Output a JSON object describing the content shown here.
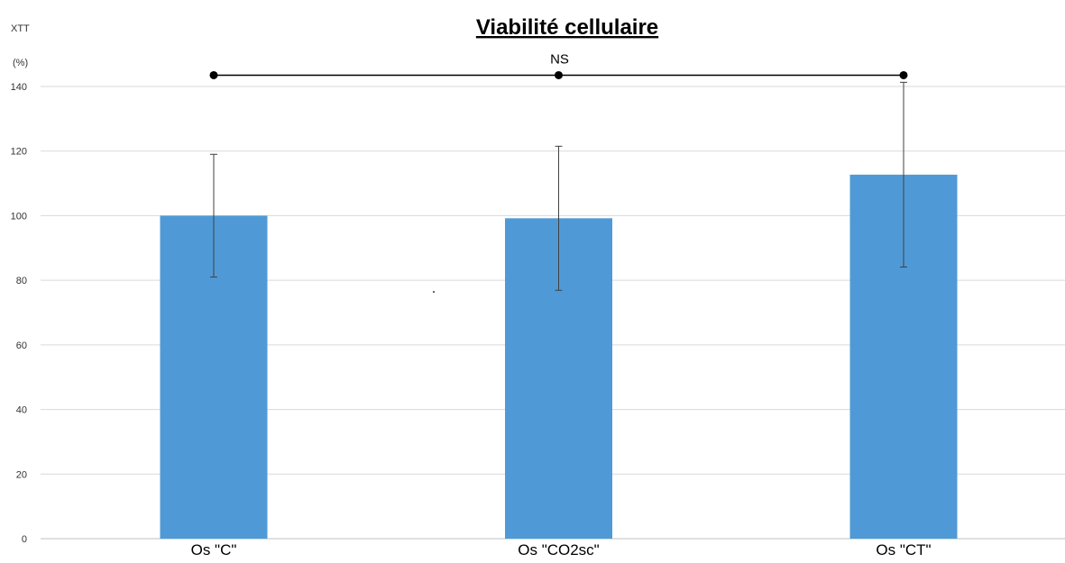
{
  "chart_data": {
    "type": "bar",
    "title": "Viabilité cellulaire",
    "ylabel_line1": "XTT",
    "ylabel_line2": "(%)",
    "xlabel": "",
    "categories": [
      "Os \"C\"",
      "Os \"CO2sc\"",
      "Os \"CT\""
    ],
    "values": [
      100,
      99.2,
      112.7
    ],
    "error": [
      19,
      22.3,
      28.6
    ],
    "ylim": [
      0,
      140
    ],
    "yticks": [
      0,
      20,
      40,
      60,
      80,
      100,
      120,
      140
    ],
    "grid": true,
    "bar_color": "#4f9ad6",
    "significance": {
      "label": "NS",
      "from": 0,
      "to": 2,
      "y": 143.5
    }
  }
}
